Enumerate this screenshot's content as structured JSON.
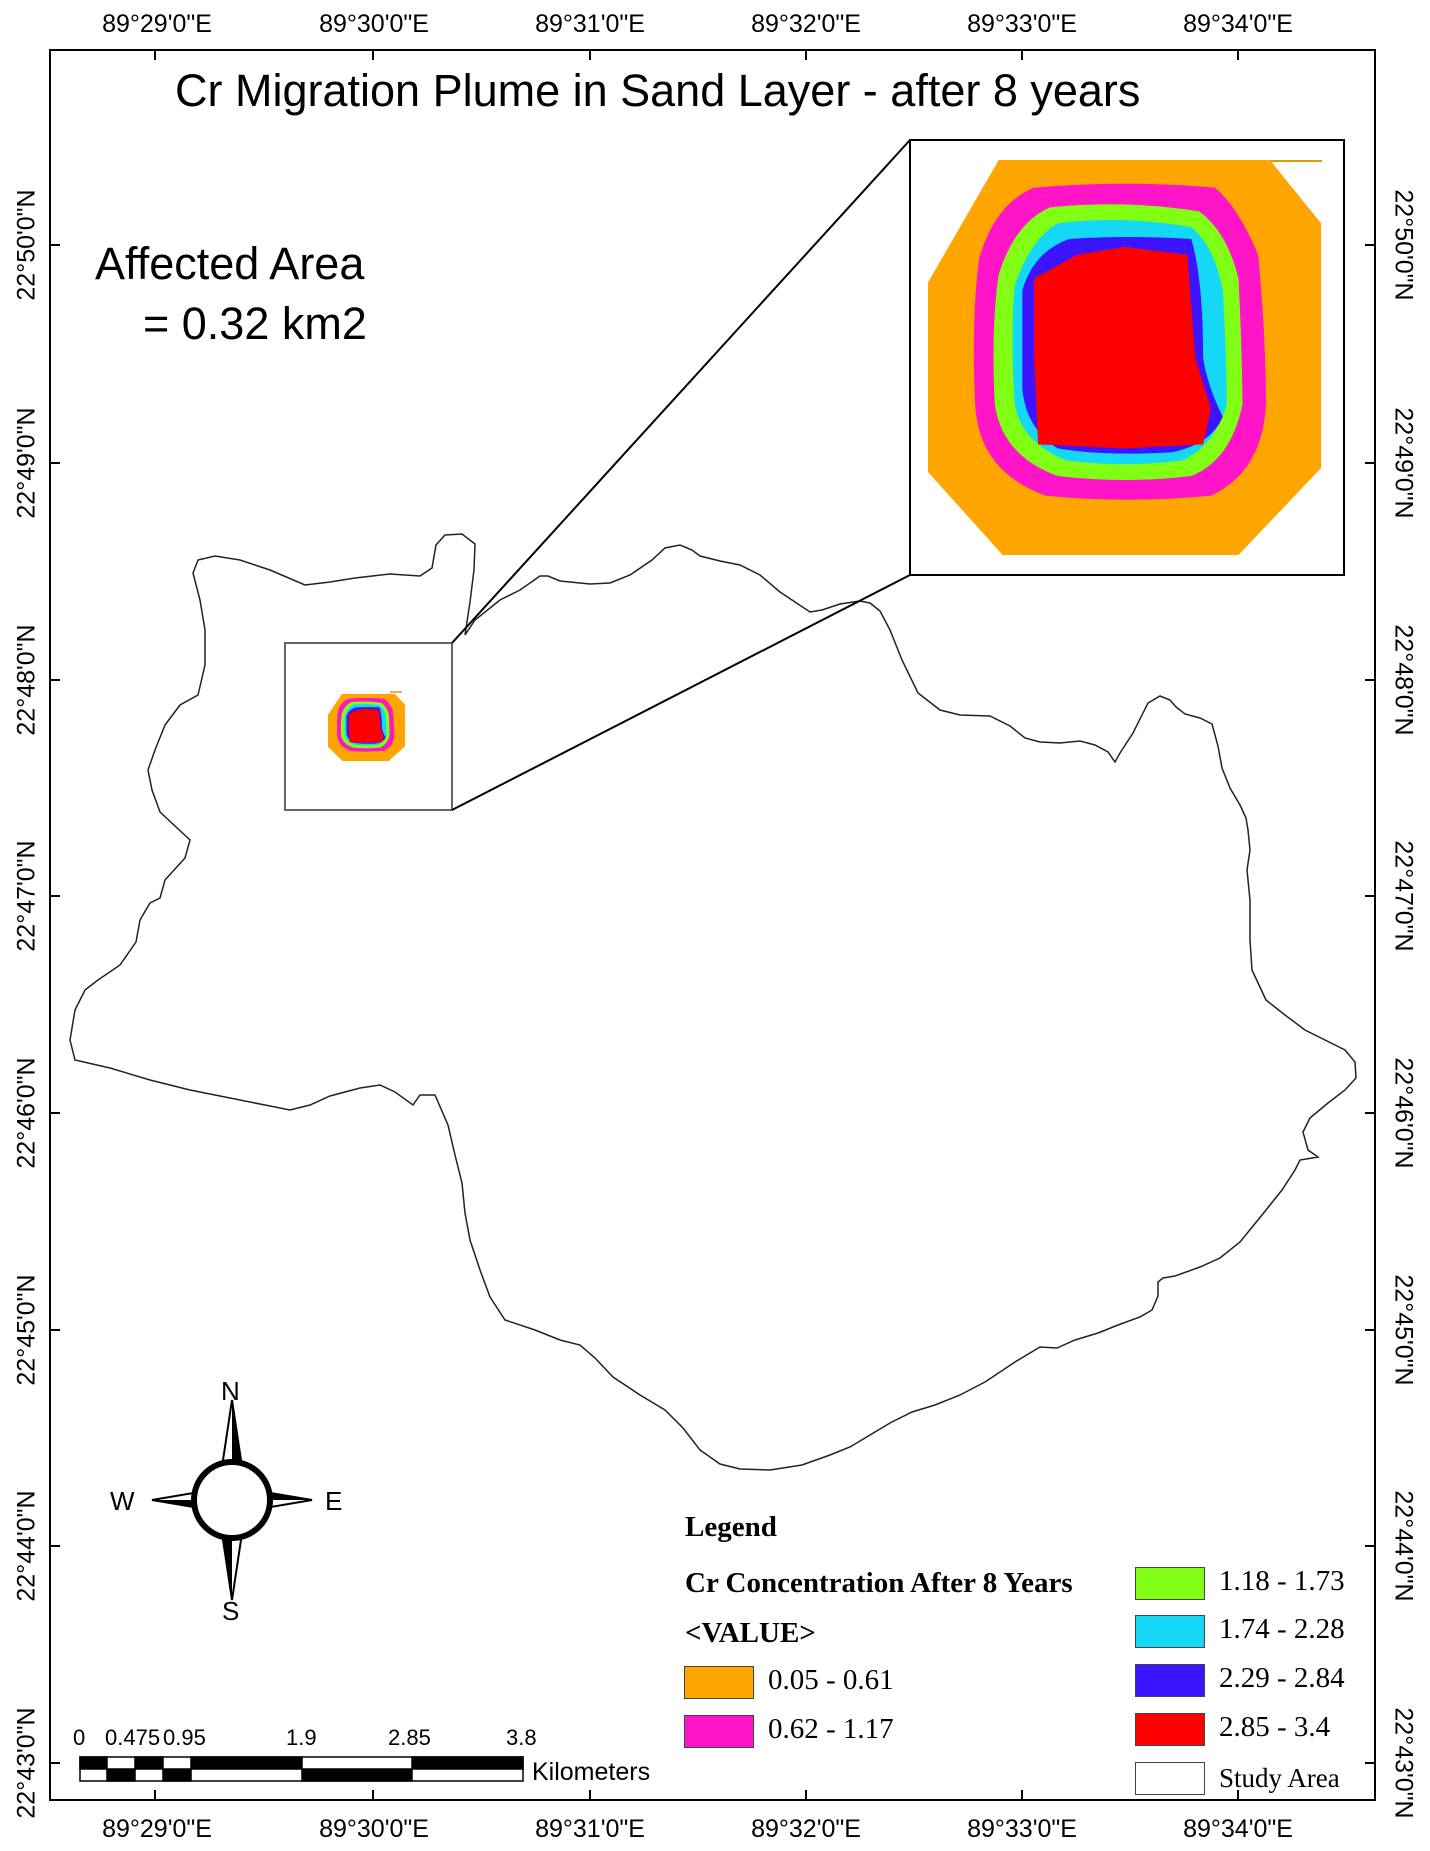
{
  "map": {
    "title": "Cr Migration Plume in Sand Layer - after 8 years",
    "affected_area": {
      "line1": "Affected Area",
      "line2": "= 0.32 km2"
    },
    "longitude_ticks": [
      "89°29'0\"E",
      "89°30'0\"E",
      "89°31'0\"E",
      "89°32'0\"E",
      "89°33'0\"E",
      "89°34'0\"E"
    ],
    "latitude_ticks": [
      "22°50'0\"N",
      "22°49'0\"N",
      "22°48'0\"N",
      "22°47'0\"N",
      "22°46'0\"N",
      "22°45'0\"N",
      "22°44'0\"N",
      "22°43'0\"N"
    ],
    "compass": {
      "n": "N",
      "s": "S",
      "e": "E",
      "w": "W"
    },
    "scale_bar": {
      "labels": [
        "0",
        "0.475",
        "0.95",
        "1.9",
        "2.85",
        "3.8"
      ],
      "unit": "Kilometers"
    },
    "legend": {
      "heading": "Legend",
      "layer": "Cr Concentration After 8 Years",
      "field": "<VALUE>",
      "classes": [
        {
          "label": "0.05 - 0.61",
          "color": "#FFA500"
        },
        {
          "label": "0.62 - 1.17",
          "color": "#FF14C8"
        },
        {
          "label": "1.18 - 1.73",
          "color": "#80FF14"
        },
        {
          "label": "1.74 - 2.28",
          "color": "#14D8F5"
        },
        {
          "label": "2.29 - 2.84",
          "color": "#3C14FF"
        },
        {
          "label": "2.85 - 3.4",
          "color": "#FF0000"
        }
      ],
      "study_area": {
        "label": "Study Area",
        "color": "#FFFFFF"
      }
    }
  }
}
